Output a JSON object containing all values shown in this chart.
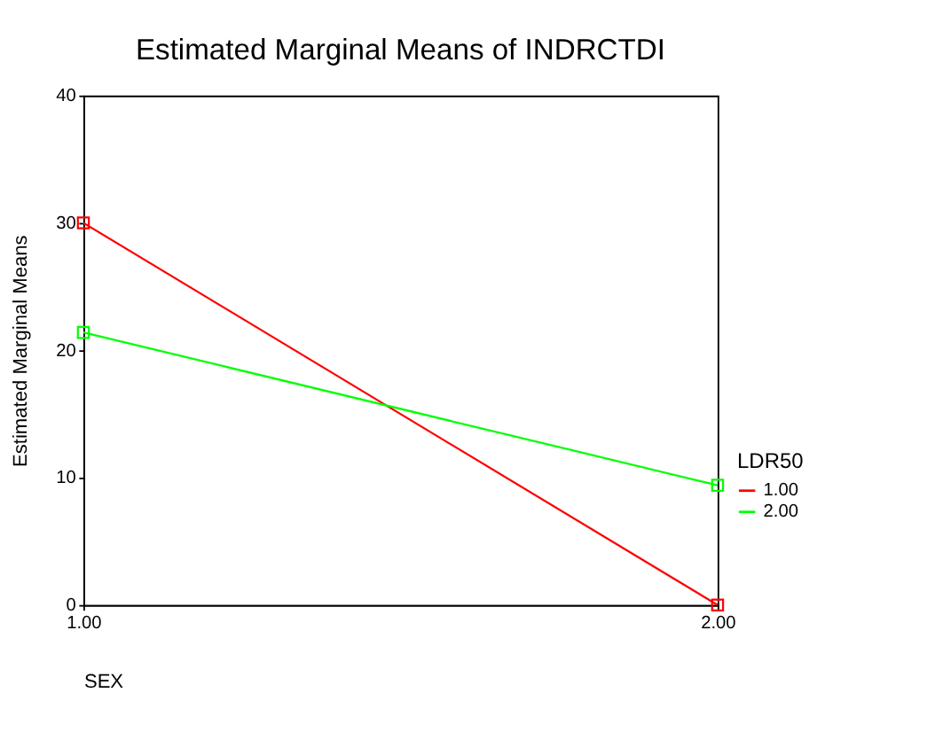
{
  "chart_data": {
    "type": "line",
    "title": "Estimated Marginal Means of INDRCTDI",
    "xlabel": "SEX",
    "ylabel": "Estimated Marginal Means",
    "legend_title": "LDR50",
    "x": [
      1,
      2
    ],
    "series": [
      {
        "name": "1.00",
        "color": "#ff0000",
        "values": [
          30,
          0
        ]
      },
      {
        "name": "2.00",
        "color": "#00ff00",
        "values": [
          21.4,
          9.4
        ]
      }
    ],
    "xlim": [
      1,
      2
    ],
    "xticks": [
      {
        "value": 1,
        "label": "1.00"
      },
      {
        "value": 2,
        "label": "2.00"
      }
    ],
    "ylim": [
      0,
      40
    ],
    "yticks": [
      0,
      10,
      20,
      30,
      40
    ],
    "grid": false,
    "legend": "right",
    "marker": "square",
    "line_style": "solid"
  }
}
